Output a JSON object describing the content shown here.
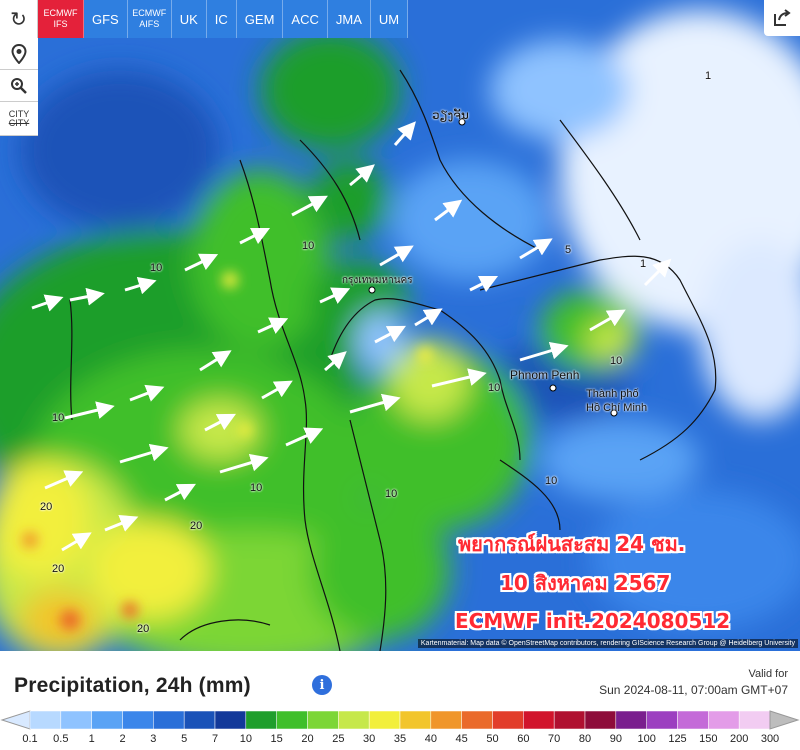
{
  "models": [
    {
      "id": "ecmwf-ifs",
      "line1": "ECMWF",
      "line2": "IFS",
      "active": true
    },
    {
      "id": "gfs",
      "line1": "GFS",
      "line2": "",
      "active": false
    },
    {
      "id": "ecmwf-aifs",
      "line1": "ECMWF",
      "line2": "AIFS",
      "active": false
    },
    {
      "id": "uk",
      "line1": "UK",
      "line2": "",
      "active": false
    },
    {
      "id": "ic",
      "line1": "IC",
      "line2": "",
      "active": false
    },
    {
      "id": "gem",
      "line1": "GEM",
      "line2": "",
      "active": false
    },
    {
      "id": "acc",
      "line1": "ACC",
      "line2": "",
      "active": false
    },
    {
      "id": "jma",
      "line1": "JMA",
      "line2": "",
      "active": false
    },
    {
      "id": "um",
      "line1": "UM",
      "line2": "",
      "active": false
    }
  ],
  "tools": {
    "refresh_icon": "refresh-icon",
    "location_icon": "location-pin-icon",
    "zoom_icon": "zoom-icon",
    "city_label": "CITY",
    "city_label2": "CITY",
    "share_icon": "share-icon"
  },
  "overlay": {
    "line1": "พยากรณ์ฝนสะสม 24 ชม.",
    "line2": "10 สิงหาคม 2567",
    "line3": "ECMWF init.2024080512"
  },
  "places": {
    "vientiane": "ວຽງຈັນ",
    "bangkok": "กรุงเทพมหานคร",
    "phnom_penh": "Phnom Penh",
    "hcmc_line1": "Thành phố",
    "hcmc_line2": "Hồ Chí Minh"
  },
  "map_numbers": [
    "10",
    "10",
    "10",
    "20",
    "20",
    "20",
    "10",
    "10",
    "10",
    "1",
    "1",
    "5",
    "10",
    "20",
    "10"
  ],
  "credit": "Kartenmaterial: Map data © OpenStreetMap contributors, rendering GIScience Research Group @ Heidelberg University",
  "legend": {
    "title": "Precipitation, 24h (mm)",
    "info_icon": "info-icon",
    "valid_label": "Valid for",
    "valid_value": "Sun 2024-08-11, 07:00am GMT+07",
    "ticks": [
      "0.1",
      "0.5",
      "1",
      "2",
      "3",
      "5",
      "7",
      "10",
      "15",
      "20",
      "25",
      "30",
      "35",
      "40",
      "45",
      "50",
      "60",
      "70",
      "80",
      "90",
      "100",
      "125",
      "150",
      "200",
      "300"
    ],
    "colors": [
      "#b7d9ff",
      "#8fc3ff",
      "#5aa3f5",
      "#3b86ea",
      "#2a6fd8",
      "#1a52b8",
      "#13399a",
      "#1f9e2c",
      "#3fbf2a",
      "#7cd636",
      "#c6e84a",
      "#f2ef3c",
      "#f2c52c",
      "#f0962a",
      "#ea6a2a",
      "#e23d2a",
      "#d1142c",
      "#b01030",
      "#8e0c3a",
      "#7a1e8e",
      "#9c3fc0",
      "#c46ad8",
      "#e39ce8",
      "#f2ccf2",
      "#bdbdbd"
    ]
  }
}
